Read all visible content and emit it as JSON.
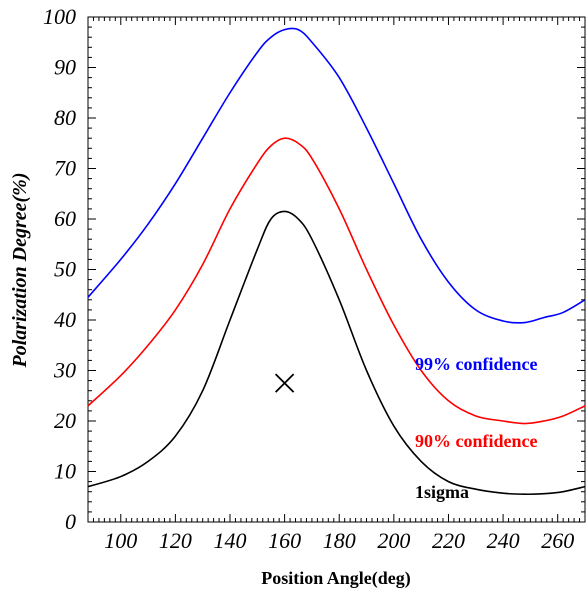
{
  "chart_data": {
    "type": "line",
    "title": "",
    "xlabel": "Position Angle(deg)",
    "ylabel": "Polarization Degree(%)",
    "xlim": [
      88,
      270
    ],
    "ylim": [
      0,
      100
    ],
    "x_ticks": [
      100,
      120,
      140,
      160,
      180,
      200,
      220,
      240,
      260
    ],
    "y_ticks": [
      0,
      10,
      20,
      30,
      40,
      50,
      60,
      70,
      80,
      90,
      100
    ],
    "x_tick_labels": [
      "100",
      "120",
      "140",
      "160",
      "180",
      "200",
      "220",
      "240",
      "260"
    ],
    "y_tick_labels": [
      "0",
      "10",
      "20",
      "30",
      "40",
      "50",
      "60",
      "70",
      "80",
      "90",
      "100"
    ],
    "grid": false,
    "legend": "none",
    "series": [
      {
        "name": "99% confidence",
        "color": "#0000ff",
        "x": [
          88,
          100,
          110,
          120,
          130,
          140,
          150,
          155,
          160,
          165,
          170,
          180,
          190,
          200,
          210,
          220,
          230,
          240,
          248,
          255,
          262,
          270
        ],
        "y": [
          44.5,
          52,
          59,
          67,
          76,
          85,
          93,
          96,
          97.5,
          97.5,
          95,
          88,
          78,
          67,
          56,
          47.5,
          42,
          39.8,
          39.5,
          40.5,
          41.5,
          44
        ]
      },
      {
        "name": "90% confidence",
        "color": "#ff0000",
        "x": [
          88,
          100,
          110,
          120,
          130,
          140,
          150,
          155,
          160,
          165,
          170,
          180,
          190,
          200,
          210,
          220,
          230,
          240,
          248,
          255,
          262,
          270
        ],
        "y": [
          23,
          29,
          35,
          42,
          51,
          62,
          71,
          74.5,
          76,
          75,
          72,
          62,
          50,
          39,
          30,
          24,
          21,
          20,
          19.5,
          20,
          21,
          23
        ]
      },
      {
        "name": "1sigma",
        "color": "#000000",
        "x": [
          88,
          100,
          110,
          120,
          130,
          140,
          150,
          155,
          160,
          165,
          170,
          180,
          190,
          200,
          210,
          220,
          230,
          240,
          248,
          255,
          262,
          270
        ],
        "y": [
          7,
          9,
          12,
          17,
          26,
          40,
          54,
          60,
          61.5,
          60,
          56,
          44,
          30,
          19,
          12,
          8,
          6.5,
          5.7,
          5.5,
          5.6,
          6,
          7
        ]
      }
    ],
    "markers": [
      {
        "label": "×",
        "x": 160,
        "y": 27.5,
        "color": "#000000"
      }
    ],
    "curve_labels": [
      {
        "text": "99% confidence",
        "color": "#0000ff"
      },
      {
        "text": "90% confidence",
        "color": "#ff0000"
      },
      {
        "text": "1sigma",
        "color": "#000000"
      }
    ]
  }
}
